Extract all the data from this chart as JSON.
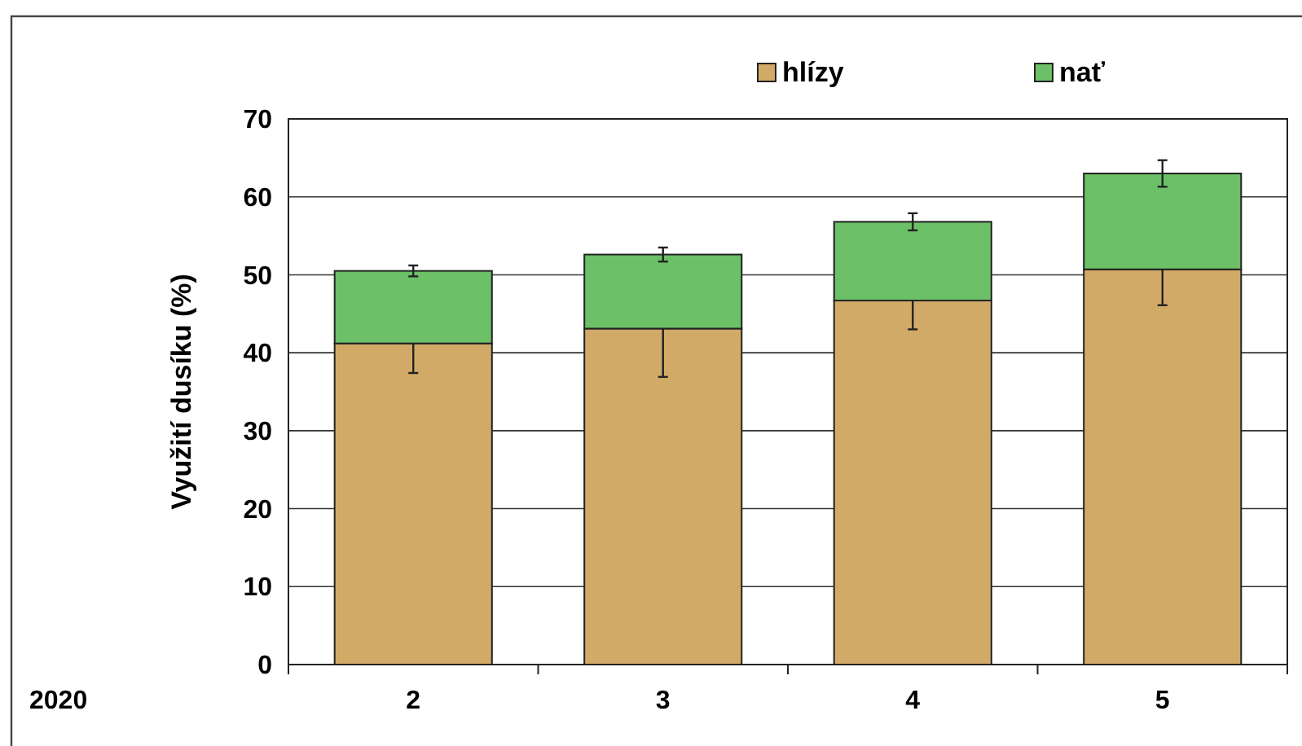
{
  "chart_data": {
    "type": "bar",
    "stacked": true,
    "ylabel": "Využití dusíku (%)",
    "categories": [
      "2",
      "3",
      "4",
      "5"
    ],
    "series": [
      {
        "name": "hlízy",
        "color": "#d2aa68",
        "values": [
          41.2,
          43.1,
          46.7,
          50.7
        ],
        "errors": [
          3.8,
          6.2,
          3.7,
          4.6
        ]
      },
      {
        "name": "nať",
        "color": "#6cc067",
        "values": [
          9.3,
          9.5,
          10.1,
          12.3
        ],
        "errors": [
          0.7,
          0.9,
          1.1,
          1.7
        ]
      }
    ],
    "ylim": [
      0,
      70
    ],
    "yticks": [
      0,
      10,
      20,
      30,
      40,
      50,
      60,
      70
    ],
    "grid": "y",
    "legend": "top",
    "annotations": [
      "2020"
    ]
  }
}
